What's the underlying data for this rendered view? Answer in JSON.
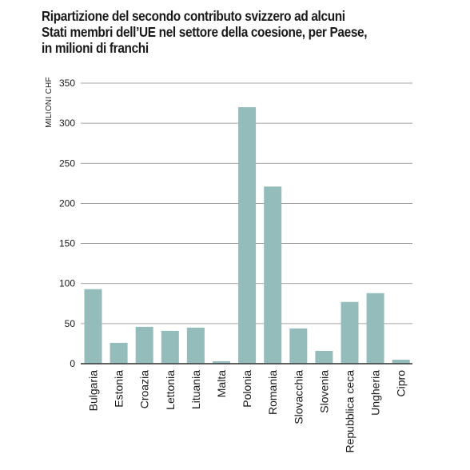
{
  "chart_data": {
    "type": "bar",
    "title": [
      "Ripartizione del secondo contributo svizzero ad alcuni",
      "Stati membri dell’UE nel settore della coesione, per Paese,",
      "in milioni di franchi"
    ],
    "ylabel": "MILIONI CHF",
    "xlabel": "",
    "ylim": [
      0,
      350
    ],
    "yticks": [
      0,
      50,
      100,
      150,
      200,
      250,
      300,
      350
    ],
    "grid": true,
    "bar_color": "#94bcbb",
    "categories": [
      "Bulgaria",
      "Estonia",
      "Croazia",
      "Lettonia",
      "Lituania",
      "Malta",
      "Polonia",
      "Romania",
      "Slovacchia",
      "Slovenia",
      "Repubblica ceca",
      "Ungheria",
      "Cipro"
    ],
    "values": [
      93,
      26,
      46,
      41,
      45,
      3,
      320,
      221,
      44,
      16,
      77,
      88,
      5
    ]
  }
}
